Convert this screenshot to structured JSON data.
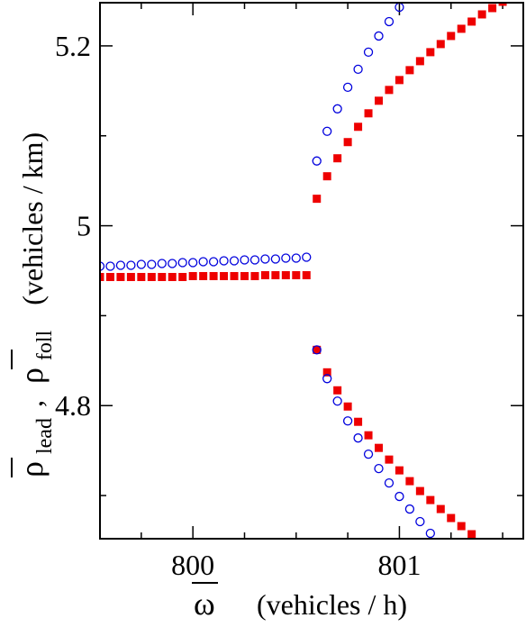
{
  "chart_data": {
    "type": "scatter",
    "xlabel": {
      "symbol": "ω",
      "units": "(vehicles / h)"
    },
    "ylabel": {
      "symbol1": "ρ",
      "sub1": "lead",
      "separator": ",",
      "symbol2": "ρ",
      "sub2": "foll",
      "units": "(vehicles / km)"
    },
    "xlim": [
      799.55,
      801.6
    ],
    "ylim": [
      4.652,
      5.248
    ],
    "xticks": [
      {
        "value": 800,
        "label": "800"
      },
      {
        "value": 801,
        "label": "801"
      }
    ],
    "yticks": [
      {
        "value": 4.8,
        "label": "4.8"
      },
      {
        "value": 5.0,
        "label": "5"
      },
      {
        "value": 5.2,
        "label": "5.2"
      }
    ],
    "minor_yticks": [
      4.7,
      4.9,
      5.1
    ],
    "minor_xticks": [
      799.75,
      800.25,
      800.5,
      800.75,
      801.25,
      801.5
    ],
    "series": [
      {
        "marker": "open-circle",
        "color": "#0000dd",
        "points": [
          {
            "x": 799.55,
            "y": 4.955
          },
          {
            "x": 799.6,
            "y": 4.955
          },
          {
            "x": 799.65,
            "y": 4.956
          },
          {
            "x": 799.7,
            "y": 4.956
          },
          {
            "x": 799.75,
            "y": 4.957
          },
          {
            "x": 799.8,
            "y": 4.957
          },
          {
            "x": 799.85,
            "y": 4.958
          },
          {
            "x": 799.9,
            "y": 4.958
          },
          {
            "x": 799.95,
            "y": 4.959
          },
          {
            "x": 800.0,
            "y": 4.959
          },
          {
            "x": 800.05,
            "y": 4.96
          },
          {
            "x": 800.1,
            "y": 4.96
          },
          {
            "x": 800.15,
            "y": 4.961
          },
          {
            "x": 800.2,
            "y": 4.961
          },
          {
            "x": 800.25,
            "y": 4.962
          },
          {
            "x": 800.3,
            "y": 4.962
          },
          {
            "x": 800.35,
            "y": 4.963
          },
          {
            "x": 800.4,
            "y": 4.963
          },
          {
            "x": 800.45,
            "y": 4.964
          },
          {
            "x": 800.5,
            "y": 4.964
          },
          {
            "x": 800.55,
            "y": 4.965
          },
          {
            "x": 800.6,
            "y": 5.072
          },
          {
            "x": 800.65,
            "y": 5.105
          },
          {
            "x": 800.7,
            "y": 5.13
          },
          {
            "x": 800.75,
            "y": 5.154
          },
          {
            "x": 800.8,
            "y": 5.174
          },
          {
            "x": 800.85,
            "y": 5.193
          },
          {
            "x": 800.9,
            "y": 5.211
          },
          {
            "x": 800.95,
            "y": 5.227
          },
          {
            "x": 801.0,
            "y": 5.243
          },
          {
            "x": 800.6,
            "y": 4.862
          },
          {
            "x": 800.65,
            "y": 4.83
          },
          {
            "x": 800.7,
            "y": 4.805
          },
          {
            "x": 800.75,
            "y": 4.783
          },
          {
            "x": 800.8,
            "y": 4.764
          },
          {
            "x": 800.85,
            "y": 4.746
          },
          {
            "x": 800.9,
            "y": 4.73
          },
          {
            "x": 800.95,
            "y": 4.714
          },
          {
            "x": 801.0,
            "y": 4.699
          },
          {
            "x": 801.05,
            "y": 4.685
          },
          {
            "x": 801.1,
            "y": 4.671
          },
          {
            "x": 801.15,
            "y": 4.658
          }
        ]
      },
      {
        "marker": "filled-square",
        "color": "#ee0000",
        "points": [
          {
            "x": 799.55,
            "y": 4.943
          },
          {
            "x": 799.6,
            "y": 4.943
          },
          {
            "x": 799.65,
            "y": 4.943
          },
          {
            "x": 799.7,
            "y": 4.943
          },
          {
            "x": 799.75,
            "y": 4.943
          },
          {
            "x": 799.8,
            "y": 4.943
          },
          {
            "x": 799.85,
            "y": 4.943
          },
          {
            "x": 799.9,
            "y": 4.943
          },
          {
            "x": 799.95,
            "y": 4.943
          },
          {
            "x": 800.0,
            "y": 4.944
          },
          {
            "x": 800.05,
            "y": 4.944
          },
          {
            "x": 800.1,
            "y": 4.944
          },
          {
            "x": 800.15,
            "y": 4.944
          },
          {
            "x": 800.2,
            "y": 4.944
          },
          {
            "x": 800.25,
            "y": 4.944
          },
          {
            "x": 800.3,
            "y": 4.944
          },
          {
            "x": 800.35,
            "y": 4.945
          },
          {
            "x": 800.4,
            "y": 4.945
          },
          {
            "x": 800.45,
            "y": 4.945
          },
          {
            "x": 800.5,
            "y": 4.945
          },
          {
            "x": 800.55,
            "y": 4.945
          },
          {
            "x": 800.6,
            "y": 5.03
          },
          {
            "x": 800.65,
            "y": 5.055
          },
          {
            "x": 800.7,
            "y": 5.075
          },
          {
            "x": 800.75,
            "y": 5.093
          },
          {
            "x": 800.8,
            "y": 5.11
          },
          {
            "x": 800.85,
            "y": 5.125
          },
          {
            "x": 800.9,
            "y": 5.139
          },
          {
            "x": 800.95,
            "y": 5.151
          },
          {
            "x": 801.0,
            "y": 5.162
          },
          {
            "x": 801.05,
            "y": 5.173
          },
          {
            "x": 801.1,
            "y": 5.183
          },
          {
            "x": 801.15,
            "y": 5.193
          },
          {
            "x": 801.2,
            "y": 5.202
          },
          {
            "x": 801.25,
            "y": 5.211
          },
          {
            "x": 801.3,
            "y": 5.219
          },
          {
            "x": 801.35,
            "y": 5.227
          },
          {
            "x": 801.4,
            "y": 5.235
          },
          {
            "x": 801.45,
            "y": 5.242
          },
          {
            "x": 801.5,
            "y": 5.249
          },
          {
            "x": 800.6,
            "y": 4.862
          },
          {
            "x": 800.65,
            "y": 4.837
          },
          {
            "x": 800.7,
            "y": 4.817
          },
          {
            "x": 800.75,
            "y": 4.799
          },
          {
            "x": 800.8,
            "y": 4.782
          },
          {
            "x": 800.85,
            "y": 4.767
          },
          {
            "x": 800.9,
            "y": 4.753
          },
          {
            "x": 800.95,
            "y": 4.74
          },
          {
            "x": 801.0,
            "y": 4.728
          },
          {
            "x": 801.05,
            "y": 4.716
          },
          {
            "x": 801.1,
            "y": 4.705
          },
          {
            "x": 801.15,
            "y": 4.695
          },
          {
            "x": 801.2,
            "y": 4.685
          },
          {
            "x": 801.25,
            "y": 4.675
          },
          {
            "x": 801.3,
            "y": 4.666
          },
          {
            "x": 801.35,
            "y": 4.657
          }
        ]
      }
    ]
  }
}
